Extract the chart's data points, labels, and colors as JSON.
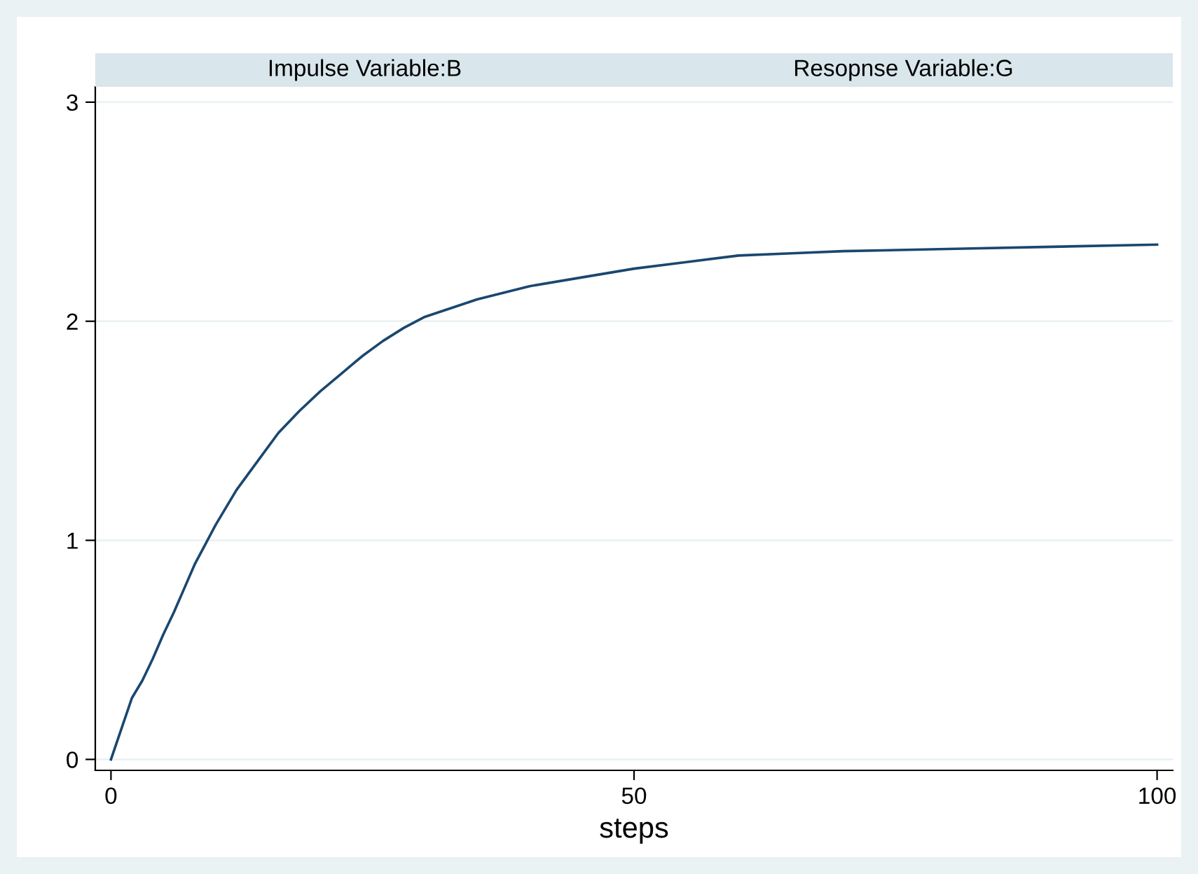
{
  "chart_data": {
    "type": "line",
    "title": "Impulse Variable:B",
    "subtitle": "Resopnse Variable:G",
    "xlabel": "steps",
    "x": [
      0,
      2,
      3,
      4,
      5,
      6,
      7,
      8,
      9,
      10,
      12,
      14,
      16,
      18,
      20,
      22,
      24,
      26,
      28,
      30,
      35,
      40,
      45,
      50,
      55,
      60,
      65,
      70,
      80,
      90,
      100
    ],
    "series": [
      {
        "color": "#1a476f",
        "values": [
          0,
          0.28,
          0.36,
          0.46,
          0.57,
          0.67,
          0.78,
          0.89,
          0.98,
          1.07,
          1.23,
          1.36,
          1.49,
          1.59,
          1.68,
          1.76,
          1.84,
          1.91,
          1.97,
          2.02,
          2.1,
          2.16,
          2.2,
          2.24,
          2.27,
          2.3,
          2.31,
          2.32,
          2.33,
          2.34,
          2.35
        ]
      }
    ],
    "xlim": [
      -1.5,
      101.5
    ],
    "ylim": [
      -0.05,
      3.07
    ],
    "xticks": [
      0,
      50,
      100
    ],
    "yticks": [
      0,
      1,
      2,
      3
    ],
    "grid": "y",
    "marker": "none",
    "line_style": "solid"
  }
}
